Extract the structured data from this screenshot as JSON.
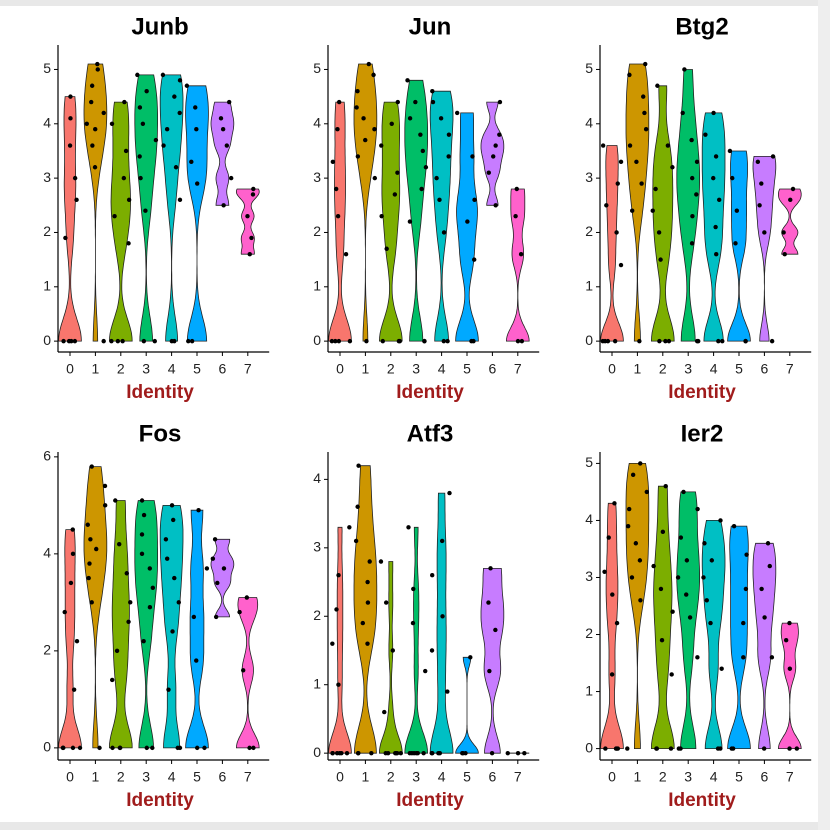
{
  "chart_data": [
    {
      "type": "violin",
      "title": "Junb",
      "x_label": "Identity",
      "categories": [
        "0",
        "1",
        "2",
        "3",
        "4",
        "5",
        "6",
        "7"
      ],
      "colors": [
        "#F8766D",
        "#CD9600",
        "#7CAE00",
        "#00BE67",
        "#00BFC4",
        "#00A9FF",
        "#C77CFF",
        "#FF61CC"
      ],
      "ylim": [
        -0.2,
        5.45
      ],
      "yticks": [
        0,
        1,
        2,
        3,
        4,
        5
      ],
      "values": [
        [
          0,
          0,
          0,
          0,
          1.9,
          2.6,
          3.0,
          3.6,
          4.1,
          4.5
        ],
        [
          0,
          3.2,
          3.6,
          3.9,
          4.0,
          4.2,
          4.4,
          4.7,
          5.0,
          5.1
        ],
        [
          0,
          0,
          0,
          1.8,
          2.3,
          2.6,
          3.0,
          3.5,
          4.0,
          4.4
        ],
        [
          0,
          0,
          2.4,
          3.0,
          3.4,
          3.7,
          4.0,
          4.3,
          4.6,
          4.9
        ],
        [
          0,
          0,
          2.6,
          3.2,
          3.6,
          3.9,
          4.2,
          4.5,
          4.8,
          4.9
        ],
        [
          0,
          0,
          2.9,
          3.3,
          3.9,
          4.3,
          4.7
        ],
        [
          2.5,
          3.0,
          3.6,
          3.9,
          4.1,
          4.4
        ],
        [
          1.6,
          1.9,
          2.3,
          2.7,
          2.8
        ]
      ]
    },
    {
      "type": "violin",
      "title": "Jun",
      "x_label": "Identity",
      "categories": [
        "0",
        "1",
        "2",
        "3",
        "4",
        "5",
        "6",
        "7"
      ],
      "colors": [
        "#F8766D",
        "#CD9600",
        "#7CAE00",
        "#00BE67",
        "#00BFC4",
        "#00A9FF",
        "#C77CFF",
        "#FF61CC"
      ],
      "ylim": [
        -0.2,
        5.45
      ],
      "yticks": [
        0,
        1,
        2,
        3,
        4,
        5
      ],
      "values": [
        [
          0,
          0,
          0,
          0,
          1.6,
          2.3,
          2.8,
          3.3,
          3.9,
          4.4
        ],
        [
          0,
          3.0,
          3.4,
          3.7,
          3.9,
          4.1,
          4.3,
          4.6,
          4.9,
          5.1
        ],
        [
          0,
          0,
          0,
          1.7,
          2.3,
          2.7,
          3.1,
          3.6,
          4.0,
          4.4
        ],
        [
          0,
          0,
          2.2,
          2.8,
          3.2,
          3.5,
          3.8,
          4.1,
          4.4,
          4.8
        ],
        [
          0,
          0,
          2.0,
          2.6,
          3.0,
          3.4,
          3.8,
          4.1,
          4.4,
          4.6
        ],
        [
          0,
          0,
          1.5,
          2.2,
          2.6,
          3.4,
          4.2
        ],
        [
          2.5,
          3.1,
          3.4,
          3.6,
          3.8,
          4.4
        ],
        [
          0,
          0,
          1.6,
          2.3,
          2.8
        ]
      ]
    },
    {
      "type": "violin",
      "title": "Btg2",
      "x_label": "Identity",
      "categories": [
        "0",
        "1",
        "2",
        "3",
        "4",
        "5",
        "6",
        "7"
      ],
      "colors": [
        "#F8766D",
        "#CD9600",
        "#7CAE00",
        "#00BE67",
        "#00BFC4",
        "#00A9FF",
        "#C77CFF",
        "#FF61CC"
      ],
      "ylim": [
        -0.2,
        5.45
      ],
      "yticks": [
        0,
        1,
        2,
        3,
        4,
        5
      ],
      "values": [
        [
          0,
          0,
          0,
          0,
          1.4,
          2.0,
          2.5,
          2.9,
          3.3,
          3.6
        ],
        [
          0,
          2.4,
          2.9,
          3.3,
          3.6,
          3.9,
          4.2,
          4.5,
          4.9,
          5.1
        ],
        [
          0,
          0,
          0,
          1.5,
          2.0,
          2.4,
          2.8,
          3.2,
          3.6,
          4.7
        ],
        [
          0,
          0,
          1.8,
          2.3,
          2.7,
          3.0,
          3.3,
          3.7,
          4.2,
          5.0
        ],
        [
          0,
          0,
          1.6,
          2.1,
          2.6,
          3.0,
          3.4,
          3.8,
          4.2
        ],
        [
          0,
          0,
          1.8,
          2.4,
          3.0,
          3.5
        ],
        [
          0,
          2.0,
          2.5,
          2.9,
          3.3,
          3.4
        ],
        [
          1.6,
          2.0,
          2.6,
          2.8
        ]
      ]
    },
    {
      "type": "violin",
      "title": "Fos",
      "x_label": "Identity",
      "categories": [
        "0",
        "1",
        "2",
        "3",
        "4",
        "5",
        "6",
        "7"
      ],
      "colors": [
        "#F8766D",
        "#CD9600",
        "#7CAE00",
        "#00BE67",
        "#00BFC4",
        "#00A9FF",
        "#C77CFF",
        "#FF61CC"
      ],
      "ylim": [
        -0.25,
        6.1
      ],
      "yticks": [
        0,
        2,
        4,
        6
      ],
      "values": [
        [
          0,
          0,
          0,
          0,
          1.2,
          2.2,
          2.8,
          3.4,
          4.0,
          4.5
        ],
        [
          0,
          3.0,
          3.5,
          3.8,
          4.1,
          4.3,
          4.6,
          5.0,
          5.4,
          5.8
        ],
        [
          0,
          0,
          0,
          1.4,
          2.0,
          2.6,
          3.0,
          3.6,
          4.2,
          5.1
        ],
        [
          0,
          0,
          2.2,
          2.9,
          3.3,
          3.7,
          4.0,
          4.4,
          4.8,
          5.1
        ],
        [
          0,
          0,
          1.2,
          2.4,
          3.0,
          3.5,
          3.9,
          4.3,
          4.7,
          5.0
        ],
        [
          0,
          0,
          1.8,
          2.7,
          3.7,
          4.9
        ],
        [
          2.7,
          3.4,
          3.7,
          3.9,
          4.3
        ],
        [
          0,
          0,
          1.6,
          2.8,
          3.1
        ]
      ]
    },
    {
      "type": "violin",
      "title": "Atf3",
      "x_label": "Identity",
      "categories": [
        "0",
        "1",
        "2",
        "3",
        "4",
        "5",
        "6",
        "7"
      ],
      "colors": [
        "#F8766D",
        "#CD9600",
        "#7CAE00",
        "#00BE67",
        "#00BFC4",
        "#00A9FF",
        "#C77CFF",
        "#FF61CC"
      ],
      "ylim": [
        -0.1,
        4.4
      ],
      "yticks": [
        0,
        1,
        2,
        3,
        4
      ],
      "values": [
        [
          0,
          0,
          0,
          0,
          0,
          0,
          1.0,
          1.6,
          2.1,
          2.6,
          3.3
        ],
        [
          0,
          0,
          0,
          1.6,
          1.9,
          2.2,
          2.5,
          2.8,
          3.1,
          3.6,
          4.2
        ],
        [
          0,
          0,
          0,
          0,
          0,
          0,
          0.6,
          1.5,
          2.2,
          2.8
        ],
        [
          0,
          0,
          0,
          0,
          0,
          0,
          1.2,
          1.9,
          2.4,
          3.3
        ],
        [
          0,
          0,
          0,
          0,
          0.9,
          1.5,
          2.0,
          2.6,
          3.1,
          3.8
        ],
        [
          0,
          0,
          0,
          1.4
        ],
        [
          0,
          1.2,
          1.8,
          2.2,
          2.7
        ],
        [
          0,
          0,
          0
        ]
      ]
    },
    {
      "type": "violin",
      "title": "Ier2",
      "x_label": "Identity",
      "categories": [
        "0",
        "1",
        "2",
        "3",
        "4",
        "5",
        "6",
        "7"
      ],
      "colors": [
        "#F8766D",
        "#CD9600",
        "#7CAE00",
        "#00BE67",
        "#00BFC4",
        "#00A9FF",
        "#C77CFF",
        "#FF61CC"
      ],
      "ylim": [
        -0.2,
        5.2
      ],
      "yticks": [
        0,
        1,
        2,
        3,
        4,
        5
      ],
      "values": [
        [
          0,
          0,
          0,
          0,
          1.3,
          2.2,
          2.7,
          3.1,
          3.7,
          4.3
        ],
        [
          0,
          2.6,
          3.0,
          3.3,
          3.6,
          3.9,
          4.2,
          4.5,
          4.8,
          5.0
        ],
        [
          0,
          0,
          0,
          1.3,
          1.9,
          2.4,
          2.8,
          3.2,
          3.8,
          4.6
        ],
        [
          0,
          0,
          1.6,
          2.3,
          2.7,
          3.0,
          3.3,
          3.7,
          4.2,
          4.5
        ],
        [
          0,
          0,
          1.4,
          2.2,
          2.6,
          3.0,
          3.3,
          3.6,
          4.0
        ],
        [
          0,
          0,
          1.6,
          2.2,
          2.8,
          3.4,
          3.9
        ],
        [
          0,
          1.6,
          2.3,
          2.8,
          3.2,
          3.6
        ],
        [
          0,
          0,
          1.4,
          1.9,
          2.2
        ]
      ]
    }
  ]
}
